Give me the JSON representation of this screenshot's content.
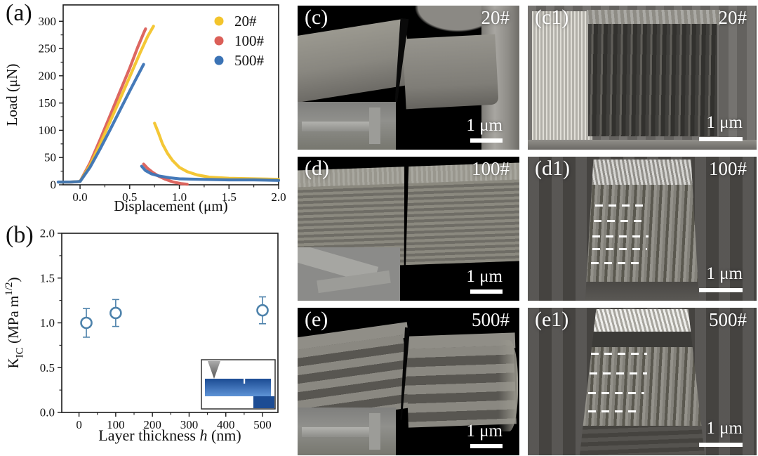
{
  "plots": {
    "a": {
      "tag": "(a)"
    },
    "b": {
      "tag": "(b)"
    }
  },
  "chart_data": [
    {
      "id": "a",
      "type": "line",
      "xlabel": "Displacement (μm)",
      "ylabel": "Load (μN)",
      "xlim": [
        -0.17,
        2.0
      ],
      "ylim": [
        0,
        330
      ],
      "xticks": [
        {
          "v": 0.0,
          "l": "0.0"
        },
        {
          "v": 0.5,
          "l": "0.5"
        },
        {
          "v": 1.0,
          "l": "1.0"
        },
        {
          "v": 1.5,
          "l": "1.5"
        },
        {
          "v": 2.0,
          "l": "2.0"
        }
      ],
      "yticks": [
        {
          "v": 0,
          "l": "0"
        },
        {
          "v": 50,
          "l": "50"
        },
        {
          "v": 100,
          "l": "100"
        },
        {
          "v": 150,
          "l": "150"
        },
        {
          "v": 200,
          "l": "200"
        },
        {
          "v": 250,
          "l": "250"
        },
        {
          "v": 300,
          "l": "300"
        }
      ],
      "xminor": [
        0.25,
        0.75,
        1.25,
        1.75
      ],
      "yminor": [
        25,
        75,
        125,
        175,
        225,
        275
      ],
      "legend": [
        {
          "label": "20#",
          "color": "#F3C42B"
        },
        {
          "label": "100#",
          "color": "#DB5F58"
        },
        {
          "label": "500#",
          "color": "#3B73B5"
        }
      ],
      "series": [
        {
          "name": "100#",
          "color": "#DB5F58",
          "segments": [
            [
              [
                -0.18,
                5
              ],
              [
                -0.08,
                5
              ],
              [
                0,
                6
              ],
              [
                0.1,
                40
              ],
              [
                0.2,
                82
              ],
              [
                0.3,
                126
              ],
              [
                0.4,
                170
              ],
              [
                0.5,
                214
              ],
              [
                0.58,
                252
              ],
              [
                0.64,
                278
              ],
              [
                0.66,
                286
              ]
            ],
            [
              [
                0.64,
                38
              ],
              [
                0.68,
                30
              ],
              [
                0.73,
                23
              ],
              [
                0.79,
                16
              ],
              [
                0.86,
                10
              ],
              [
                0.94,
                5
              ],
              [
                1.02,
                2
              ],
              [
                1.08,
                1
              ]
            ]
          ]
        },
        {
          "name": "20#",
          "color": "#F3C42B",
          "segments": [
            [
              [
                -0.2,
                5
              ],
              [
                -0.1,
                5
              ],
              [
                0,
                6
              ],
              [
                0.1,
                36
              ],
              [
                0.2,
                74
              ],
              [
                0.3,
                115
              ],
              [
                0.4,
                156
              ],
              [
                0.5,
                198
              ],
              [
                0.6,
                240
              ],
              [
                0.68,
                272
              ],
              [
                0.74,
                291
              ]
            ],
            [
              [
                0.75,
                113
              ],
              [
                0.79,
                95
              ],
              [
                0.83,
                75
              ],
              [
                0.88,
                58
              ],
              [
                0.93,
                45
              ],
              [
                1.0,
                32
              ],
              [
                1.08,
                24
              ],
              [
                1.18,
                18
              ],
              [
                1.3,
                14
              ],
              [
                1.5,
                12
              ],
              [
                1.75,
                11
              ],
              [
                2.0,
                10
              ]
            ]
          ]
        },
        {
          "name": "500#",
          "color": "#3B73B5",
          "segments": [
            [
              [
                -0.22,
                5
              ],
              [
                -0.1,
                5
              ],
              [
                0,
                6
              ],
              [
                0.1,
                32
              ],
              [
                0.2,
                65
              ],
              [
                0.3,
                100
              ],
              [
                0.4,
                136
              ],
              [
                0.5,
                172
              ],
              [
                0.58,
                200
              ],
              [
                0.64,
                221
              ]
            ],
            [
              [
                0.62,
                34
              ],
              [
                0.66,
                26
              ],
              [
                0.72,
                20
              ],
              [
                0.8,
                16
              ],
              [
                0.9,
                13
              ],
              [
                1.0,
                11
              ],
              [
                1.2,
                10
              ],
              [
                1.5,
                9
              ],
              [
                1.75,
                9
              ],
              [
                2.0,
                8
              ]
            ]
          ]
        }
      ]
    },
    {
      "id": "b",
      "type": "scatter",
      "xlabel_parts": [
        {
          "t": "Layer thickness "
        },
        {
          "t": "h",
          "italic": true
        },
        {
          "t": " (nm)"
        }
      ],
      "ylabel_parts": [
        {
          "t": "K"
        },
        {
          "t": "IC",
          "sub": true
        },
        {
          "t": " (MPa m"
        },
        {
          "t": "1/2",
          "sup": true
        },
        {
          "t": ")"
        }
      ],
      "xlim": [
        -47,
        542
      ],
      "ylim": [
        0,
        2.0
      ],
      "xticks": [
        {
          "v": 0,
          "l": "0"
        },
        {
          "v": 100,
          "l": "100"
        },
        {
          "v": 200,
          "l": "200"
        },
        {
          "v": 300,
          "l": "300"
        },
        {
          "v": 400,
          "l": "400"
        },
        {
          "v": 500,
          "l": "500"
        }
      ],
      "yticks": [
        {
          "v": 0,
          "l": "0.0"
        },
        {
          "v": 0.5,
          "l": "0.5"
        },
        {
          "v": 1.0,
          "l": "1.0"
        },
        {
          "v": 1.5,
          "l": "1.5"
        },
        {
          "v": 2.0,
          "l": "2.0"
        }
      ],
      "xminor": [
        50,
        150,
        250,
        350,
        450
      ],
      "yminor": [
        0.25,
        0.75,
        1.25,
        1.75
      ],
      "marker_color": "#4D82AB",
      "points": [
        {
          "x": 20,
          "y": 1.0,
          "err": 0.16
        },
        {
          "x": 100,
          "y": 1.11,
          "err": 0.15
        },
        {
          "x": 500,
          "y": 1.14,
          "err": 0.15
        }
      ],
      "inset": {
        "frame": "#333333",
        "tip_dark": "#555555",
        "tip_light": "#aaaaaa",
        "beam_top": "#1c4c94",
        "beam_bottom": "#5e93d6",
        "block": "#1c4c94"
      }
    }
  ],
  "sem": [
    {
      "label": "(c)",
      "sample": "20#",
      "scale": "1 μm"
    },
    {
      "label": "(c1)",
      "sample": "20#",
      "scale": "1 μm"
    },
    {
      "label": "(d)",
      "sample": "100#",
      "scale": "1 μm"
    },
    {
      "label": "(d1)",
      "sample": "100#",
      "scale": "1 μm"
    },
    {
      "label": "(e)",
      "sample": "500#",
      "scale": "1 μm"
    },
    {
      "label": "(e1)",
      "sample": "500#",
      "scale": "1 μm"
    }
  ]
}
